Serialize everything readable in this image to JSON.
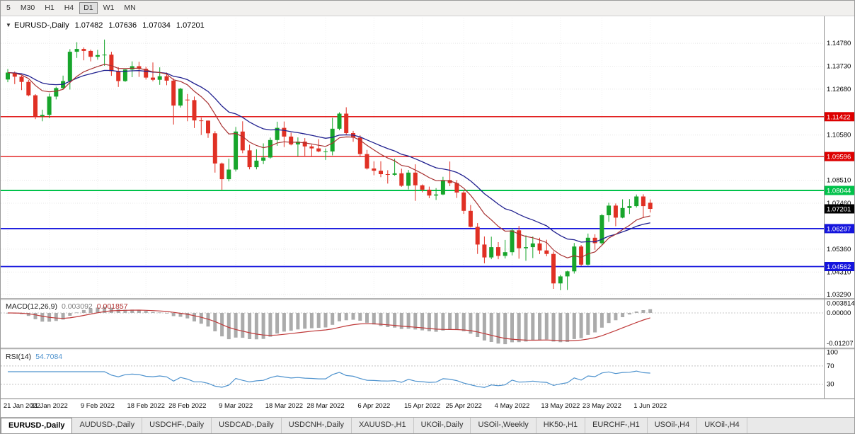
{
  "icons": {
    "chart_menu": "▼"
  },
  "toolbar": {
    "buttons": [
      {
        "label": "5",
        "active": false
      },
      {
        "label": "M30",
        "active": false
      },
      {
        "label": "H1",
        "active": false
      },
      {
        "label": "H4",
        "active": false
      },
      {
        "label": "D1",
        "active": true
      },
      {
        "label": "W1",
        "active": false
      },
      {
        "label": "MN",
        "active": false
      }
    ]
  },
  "colors": {
    "bull": "#17a52b",
    "bear": "#e03024",
    "ma_fast": "#a83232",
    "ma_slow": "#20208f",
    "macd_hist": "#ababab",
    "macd_signal": "#bf3a3a",
    "rsi": "#4f93ce",
    "grid": "#e7e7e7",
    "axis_text": "#000000"
  },
  "chart_data": {
    "type": "candlestick",
    "symbol": "EURUSD-,Daily",
    "ohlc_header": {
      "open": "1.07482",
      "high": "1.07636",
      "low": "1.07034",
      "close": "1.07201"
    },
    "y_range": [
      1.0312,
      1.1595
    ],
    "candles": [
      [
        1.1312,
        1.136,
        1.13,
        1.1344
      ],
      [
        1.1344,
        1.1349,
        1.1291,
        1.1325
      ],
      [
        1.1325,
        1.133,
        1.1264,
        1.1301
      ],
      [
        1.1301,
        1.131,
        1.1235,
        1.124
      ],
      [
        1.124,
        1.1245,
        1.1131,
        1.1144
      ],
      [
        1.1144,
        1.1174,
        1.1121,
        1.115
      ],
      [
        1.115,
        1.1248,
        1.1135,
        1.1234
      ],
      [
        1.1234,
        1.1279,
        1.1221,
        1.1273
      ],
      [
        1.1273,
        1.133,
        1.1267,
        1.1305
      ],
      [
        1.1305,
        1.1451,
        1.1266,
        1.1439
      ],
      [
        1.1439,
        1.1483,
        1.1411,
        1.1452
      ],
      [
        1.1452,
        1.1459,
        1.14,
        1.1443
      ],
      [
        1.1443,
        1.1449,
        1.1395,
        1.1416
      ],
      [
        1.1416,
        1.1448,
        1.1403,
        1.1424
      ],
      [
        1.1424,
        1.1495,
        1.1375,
        1.1426
      ],
      [
        1.1426,
        1.1439,
        1.1329,
        1.135
      ],
      [
        1.135,
        1.1369,
        1.1278,
        1.1305
      ],
      [
        1.1305,
        1.1359,
        1.1301,
        1.1358
      ],
      [
        1.1358,
        1.1395,
        1.1323,
        1.1373
      ],
      [
        1.1373,
        1.1393,
        1.1324,
        1.1361
      ],
      [
        1.1361,
        1.137,
        1.1312,
        1.1321
      ],
      [
        1.1321,
        1.139,
        1.1304,
        1.1311
      ],
      [
        1.1311,
        1.1368,
        1.1288,
        1.1327
      ],
      [
        1.1327,
        1.1344,
        1.1286,
        1.1307
      ],
      [
        1.1307,
        1.1317,
        1.1106,
        1.1193
      ],
      [
        1.1193,
        1.1274,
        1.1184,
        1.127
      ],
      [
        1.122,
        1.1246,
        1.1121,
        1.1218
      ],
      [
        1.1218,
        1.1234,
        1.109,
        1.1125
      ],
      [
        1.1125,
        1.1138,
        1.1058,
        1.1124
      ],
      [
        1.1124,
        1.1125,
        1.1045,
        1.1066
      ],
      [
        1.1066,
        1.1076,
        1.0886,
        1.0928
      ],
      [
        1.0928,
        1.0932,
        1.0806,
        1.0856
      ],
      [
        1.0856,
        1.095,
        1.0846,
        1.09
      ],
      [
        1.09,
        1.1095,
        1.0891,
        1.1074
      ],
      [
        1.1074,
        1.1121,
        1.0975,
        1.0988
      ],
      [
        1.0988,
        1.1014,
        1.0901,
        1.0911
      ],
      [
        1.0911,
        1.0993,
        1.0901,
        1.0941
      ],
      [
        1.0941,
        1.102,
        1.0925,
        1.0955
      ],
      [
        1.0955,
        1.1046,
        1.095,
        1.1035
      ],
      [
        1.1035,
        1.1119,
        1.1009,
        1.1091
      ],
      [
        1.1091,
        1.112,
        1.1003,
        1.1051
      ],
      [
        1.1051,
        1.1069,
        1.1011,
        1.1015
      ],
      [
        1.1015,
        1.1047,
        1.0962,
        1.1028
      ],
      [
        1.1028,
        1.1044,
        1.0963,
        1.1006
      ],
      [
        1.1006,
        1.1014,
        1.0962,
        1.0997
      ],
      [
        1.0997,
        1.1039,
        1.0979,
        1.0983
      ],
      [
        1.0983,
        1.0997,
        1.0944,
        1.0983
      ],
      [
        1.0983,
        1.1137,
        1.0965,
        1.1087
      ],
      [
        1.1087,
        1.1162,
        1.108,
        1.1156
      ],
      [
        1.1156,
        1.1185,
        1.106,
        1.1067
      ],
      [
        1.1067,
        1.1077,
        1.1027,
        1.1046
      ],
      [
        1.1046,
        1.1057,
        1.096,
        1.0971
      ],
      [
        1.0971,
        1.099,
        1.09,
        1.0905
      ],
      [
        1.0905,
        1.0938,
        1.0874,
        1.0895
      ],
      [
        1.0895,
        1.0938,
        1.0865,
        1.0879
      ],
      [
        1.0879,
        1.0897,
        1.0836,
        1.0876
      ],
      [
        1.0876,
        1.095,
        1.0872,
        1.0883
      ],
      [
        1.0883,
        1.0904,
        1.0821,
        1.0826
      ],
      [
        1.0826,
        1.0898,
        1.0809,
        1.0886
      ],
      [
        1.0886,
        1.0924,
        1.0757,
        1.0828
      ],
      [
        1.0828,
        1.0832,
        1.0796,
        1.0808
      ],
      [
        1.0808,
        1.0822,
        1.0769,
        1.0781
      ],
      [
        1.0781,
        1.0815,
        1.0761,
        1.0786
      ],
      [
        1.0786,
        1.0867,
        1.0783,
        1.0852
      ],
      [
        1.0852,
        1.0937,
        1.0824,
        1.0838
      ],
      [
        1.0838,
        1.0852,
        1.077,
        1.0795
      ],
      [
        1.0795,
        1.0805,
        1.0697,
        1.0711
      ],
      [
        1.0711,
        1.0738,
        1.0635,
        1.0638
      ],
      [
        1.0638,
        1.0655,
        1.0514,
        1.0557
      ],
      [
        1.0557,
        1.0594,
        1.0471,
        1.0498
      ],
      [
        1.0498,
        1.0593,
        1.049,
        1.0545
      ],
      [
        1.0545,
        1.0568,
        1.049,
        1.0505
      ],
      [
        1.0505,
        1.0578,
        1.0493,
        1.0522
      ],
      [
        1.0522,
        1.0632,
        1.0507,
        1.0622
      ],
      [
        1.0622,
        1.0642,
        1.0492,
        1.054
      ],
      [
        1.054,
        1.0599,
        1.0483,
        1.0545
      ],
      [
        1.0545,
        1.0594,
        1.0495,
        1.0562
      ],
      [
        1.0562,
        1.0588,
        1.0513,
        1.053
      ],
      [
        1.053,
        1.0579,
        1.0503,
        1.0514
      ],
      [
        1.0514,
        1.0525,
        1.0354,
        1.0379
      ],
      [
        1.0379,
        1.0419,
        1.0348,
        1.0411
      ],
      [
        1.0411,
        1.0437,
        1.0349,
        1.0434
      ],
      [
        1.0434,
        1.0564,
        1.0424,
        1.0548
      ],
      [
        1.0548,
        1.0555,
        1.0459,
        1.0465
      ],
      [
        1.0465,
        1.0607,
        1.0461,
        1.0588
      ],
      [
        1.0588,
        1.0604,
        1.0533,
        1.0563
      ],
      [
        1.0563,
        1.0697,
        1.0556,
        1.0691
      ],
      [
        1.0691,
        1.0748,
        1.0661,
        1.0735
      ],
      [
        1.0735,
        1.0745,
        1.0641,
        1.068
      ],
      [
        1.068,
        1.0764,
        1.0677,
        1.0724
      ],
      [
        1.0724,
        1.0765,
        1.0697,
        1.0733
      ],
      [
        1.0733,
        1.0786,
        1.0726,
        1.0777
      ],
      [
        1.0777,
        1.0787,
        1.0678,
        1.0733
      ],
      [
        1.07482,
        1.07636,
        1.07034,
        1.07201
      ]
    ],
    "x_ticks": [
      {
        "label": "21 Jan 2022",
        "i": 0
      },
      {
        "label": "31 Jan 2022",
        "i": 6
      },
      {
        "label": "9 Feb 2022",
        "i": 13
      },
      {
        "label": "18 Feb 2022",
        "i": 20
      },
      {
        "label": "28 Feb 2022",
        "i": 26
      },
      {
        "label": "9 Mar 2022",
        "i": 33
      },
      {
        "label": "18 Mar 2022",
        "i": 40
      },
      {
        "label": "28 Mar 2022",
        "i": 46
      },
      {
        "label": "6 Apr 2022",
        "i": 53
      },
      {
        "label": "15 Apr 2022",
        "i": 60
      },
      {
        "label": "25 Apr 2022",
        "i": 66
      },
      {
        "label": "4 May 2022",
        "i": 73
      },
      {
        "label": "13 May 2022",
        "i": 80
      },
      {
        "label": "23 May 2022",
        "i": 86
      },
      {
        "label": "1 Jun 2022",
        "i": 93
      }
    ],
    "y_axis_labels": [
      {
        "label": "1.14780",
        "v": 1.1478
      },
      {
        "label": "1.13730",
        "v": 1.1373
      },
      {
        "label": "1.12680",
        "v": 1.1268
      },
      {
        "label": "1.10580",
        "v": 1.1058
      },
      {
        "label": "1.08510",
        "v": 1.0851
      },
      {
        "label": "1.07460",
        "v": 1.0746
      },
      {
        "label": "1.05360",
        "v": 1.0536
      },
      {
        "label": "1.04310",
        "v": 1.0431
      },
      {
        "label": "1.03290",
        "v": 1.0329
      }
    ],
    "levels": [
      {
        "label": "1.11422",
        "v": 1.11422,
        "color": "#dd0000",
        "w": 1.3
      },
      {
        "label": "1.09596",
        "v": 1.09596,
        "color": "#dd0000",
        "w": 1.3
      },
      {
        "label": "1.08044",
        "v": 1.08044,
        "color": "#00c24a",
        "w": 2
      },
      {
        "label": "1.06297",
        "v": 1.06297,
        "color": "#1414dd",
        "w": 1.8
      },
      {
        "label": "1.04562",
        "v": 1.04562,
        "color": "#1414dd",
        "w": 1.8
      }
    ],
    "current_price": {
      "label": "1.07201",
      "v": 1.07201,
      "bg": "#000000",
      "fg": "#ffffff"
    },
    "indicators": {
      "macd": {
        "label": "MACD(12,26,9)",
        "value_main": "0.003092",
        "value_signal": "0.001857",
        "axis_labels": [
          {
            "label": "0.003814",
            "v": 0.003814
          },
          {
            "label": "0.00000",
            "v": 0
          },
          {
            "label": "-0.01207",
            "v": -0.01207
          }
        ]
      },
      "rsi": {
        "label": "RSI(14)",
        "value": "54.7084",
        "levels": [
          70,
          30
        ],
        "axis_labels": [
          {
            "label": "100",
            "v": 100
          },
          {
            "label": "70",
            "v": 70
          },
          {
            "label": "30",
            "v": 30
          }
        ]
      }
    }
  },
  "tabs": {
    "items": [
      {
        "label": "EURUSD-,Daily",
        "active": true
      },
      {
        "label": "AUDUSD-,Daily",
        "active": false
      },
      {
        "label": "USDCHF-,Daily",
        "active": false
      },
      {
        "label": "USDCAD-,Daily",
        "active": false
      },
      {
        "label": "USDCNH-,Daily",
        "active": false
      },
      {
        "label": "XAUUSD-,H1",
        "active": false
      },
      {
        "label": "UKOil-,Daily",
        "active": false
      },
      {
        "label": "USOil-,Weekly",
        "active": false
      },
      {
        "label": "HK50-,H1",
        "active": false
      },
      {
        "label": "EURCHF-,H1",
        "active": false
      },
      {
        "label": "USOil-,H4",
        "active": false
      },
      {
        "label": "UKOil-,H4",
        "active": false
      }
    ]
  }
}
